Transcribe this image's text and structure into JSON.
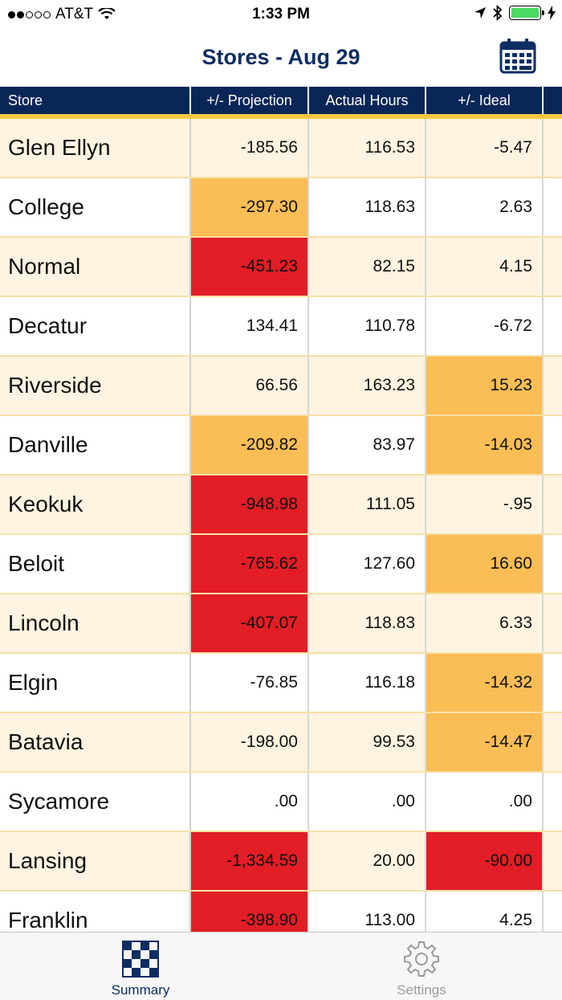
{
  "status_bar": {
    "carrier": "AT&T",
    "time": "1:33 PM",
    "signal_bars_filled": 2,
    "signal_bars_total": 5,
    "battery_color": "#4cd964",
    "icons": [
      "wifi-icon",
      "location-arrow-icon",
      "bluetooth-icon",
      "battery-icon",
      "charging-bolt-icon"
    ]
  },
  "nav": {
    "title": "Stores - Aug 29",
    "calendar_icon": "calendar-icon"
  },
  "table": {
    "headers": [
      "Store",
      "+/- Projection",
      "Actual Hours",
      "+/- Ideal"
    ],
    "rows": [
      {
        "store": "Glen Ellyn",
        "projection": "-185.56",
        "actual": "116.53",
        "ideal": "-5.47",
        "projection_status": "normal",
        "ideal_status": "normal"
      },
      {
        "store": "College",
        "projection": "-297.30",
        "actual": "118.63",
        "ideal": "2.63",
        "projection_status": "warn",
        "ideal_status": "normal"
      },
      {
        "store": "Normal",
        "projection": "-451.23",
        "actual": "82.15",
        "ideal": "4.15",
        "projection_status": "bad",
        "ideal_status": "normal"
      },
      {
        "store": "Decatur",
        "projection": "134.41",
        "actual": "110.78",
        "ideal": "-6.72",
        "projection_status": "normal",
        "ideal_status": "normal"
      },
      {
        "store": "Riverside",
        "projection": "66.56",
        "actual": "163.23",
        "ideal": "15.23",
        "projection_status": "normal",
        "ideal_status": "warn"
      },
      {
        "store": "Danville",
        "projection": "-209.82",
        "actual": "83.97",
        "ideal": "-14.03",
        "projection_status": "warn",
        "ideal_status": "warn"
      },
      {
        "store": "Keokuk",
        "projection": "-948.98",
        "actual": "111.05",
        "ideal": "-.95",
        "projection_status": "bad",
        "ideal_status": "normal"
      },
      {
        "store": "Beloit",
        "projection": "-765.62",
        "actual": "127.60",
        "ideal": "16.60",
        "projection_status": "bad",
        "ideal_status": "warn"
      },
      {
        "store": "Lincoln",
        "projection": "-407.07",
        "actual": "118.83",
        "ideal": "6.33",
        "projection_status": "bad",
        "ideal_status": "normal"
      },
      {
        "store": "Elgin",
        "projection": "-76.85",
        "actual": "116.18",
        "ideal": "-14.32",
        "projection_status": "normal",
        "ideal_status": "warn"
      },
      {
        "store": "Batavia",
        "projection": "-198.00",
        "actual": "99.53",
        "ideal": "-14.47",
        "projection_status": "normal",
        "ideal_status": "warn"
      },
      {
        "store": "Sycamore",
        "projection": ".00",
        "actual": ".00",
        "ideal": ".00",
        "projection_status": "normal",
        "ideal_status": "normal"
      },
      {
        "store": "Lansing",
        "projection": "-1,334.59",
        "actual": "20.00",
        "ideal": "-90.00",
        "projection_status": "bad",
        "ideal_status": "bad"
      },
      {
        "store": "Franklin",
        "projection": "-398.90",
        "actual": "113.00",
        "ideal": "4.25",
        "projection_status": "bad",
        "ideal_status": "normal"
      }
    ]
  },
  "colors": {
    "header_bg": "#0a2657",
    "header_accent": "#f7c842",
    "row_shade": "#fff4e1",
    "warn": "#fbbd55",
    "bad": "#e21d26",
    "title": "#0d2d63"
  },
  "tabs": [
    {
      "label": "Summary",
      "icon": "grid-pattern-icon",
      "active": true
    },
    {
      "label": "Settings",
      "icon": "gear-icon",
      "active": false
    }
  ]
}
